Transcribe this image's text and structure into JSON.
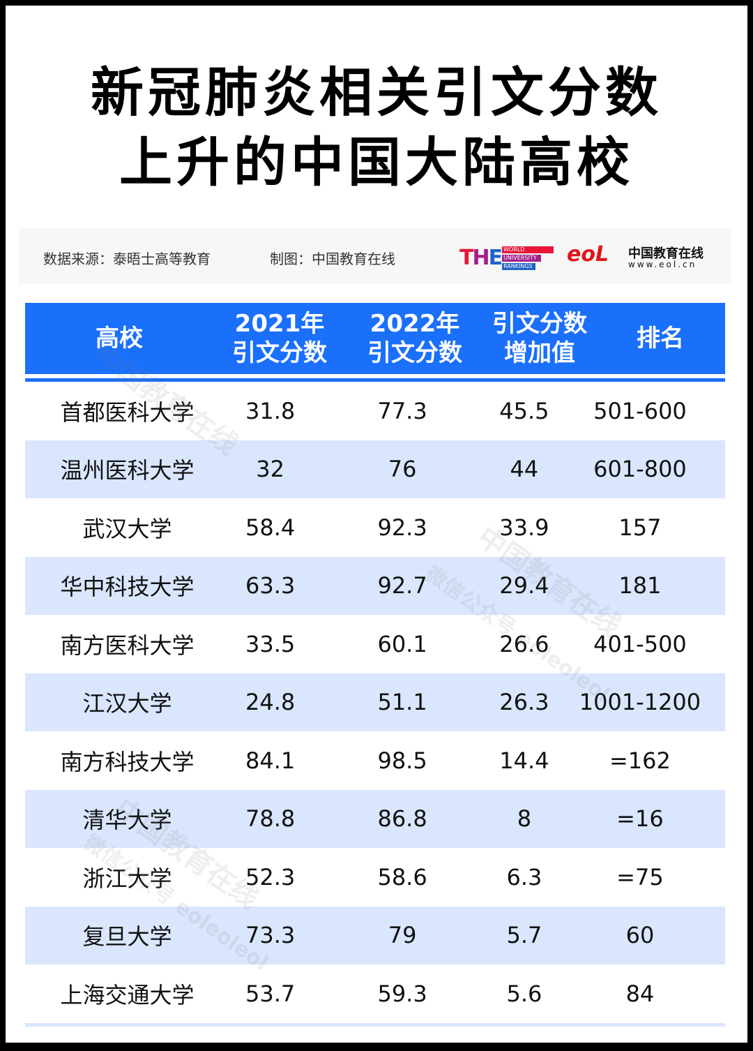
{
  "title": {
    "line1": "新冠肺炎相关引文分数",
    "line2": "上升的中国大陆高校"
  },
  "source_bar": {
    "data_source": "数据来源：泰晤士高等教育",
    "made_by": "制图：中国教育在线",
    "the_logo": {
      "big": [
        "T",
        "H",
        "E"
      ],
      "lines": [
        "WORLD",
        "UNIVERSITY",
        "RANKINGS"
      ],
      "colors": [
        "#e8173a",
        "#a3208a",
        "#1f63c7"
      ]
    },
    "eol_logo": {
      "mark": "eoL",
      "name": "中国教育在线",
      "url": "www.eol.cn"
    }
  },
  "table": {
    "header_color": "#1a6ffb",
    "alt_row_color": "#d9e6fd",
    "columns": [
      {
        "line1": "高校",
        "line2": ""
      },
      {
        "line1": "2021年",
        "line2": "引文分数"
      },
      {
        "line1": "2022年",
        "line2": "引文分数"
      },
      {
        "line1": "引文分数",
        "line2": "增加值"
      },
      {
        "line1": "排名",
        "line2": ""
      }
    ],
    "rows": [
      [
        "首都医科大学",
        "31.8",
        "77.3",
        "45.5",
        "501-600"
      ],
      [
        "温州医科大学",
        "32",
        "76",
        "44",
        "601-800"
      ],
      [
        "武汉大学",
        "58.4",
        "92.3",
        "33.9",
        "157"
      ],
      [
        "华中科技大学",
        "63.3",
        "92.7",
        "29.4",
        "181"
      ],
      [
        "南方医科大学",
        "33.5",
        "60.1",
        "26.6",
        "401-500"
      ],
      [
        "江汉大学",
        "24.8",
        "51.1",
        "26.3",
        "1001-1200"
      ],
      [
        "南方科技大学",
        "84.1",
        "98.5",
        "14.4",
        "=162"
      ],
      [
        "清华大学",
        "78.8",
        "86.8",
        "8",
        "=16"
      ],
      [
        "浙江大学",
        "52.3",
        "58.6",
        "6.3",
        "=75"
      ],
      [
        "复旦大学",
        "73.3",
        "79",
        "5.7",
        "60"
      ],
      [
        "上海交通大学",
        "53.7",
        "59.3",
        "5.6",
        "84"
      ]
    ]
  },
  "watermark": {
    "main": "中国教育在线",
    "sub": "微信公众号 eoleoleol"
  }
}
